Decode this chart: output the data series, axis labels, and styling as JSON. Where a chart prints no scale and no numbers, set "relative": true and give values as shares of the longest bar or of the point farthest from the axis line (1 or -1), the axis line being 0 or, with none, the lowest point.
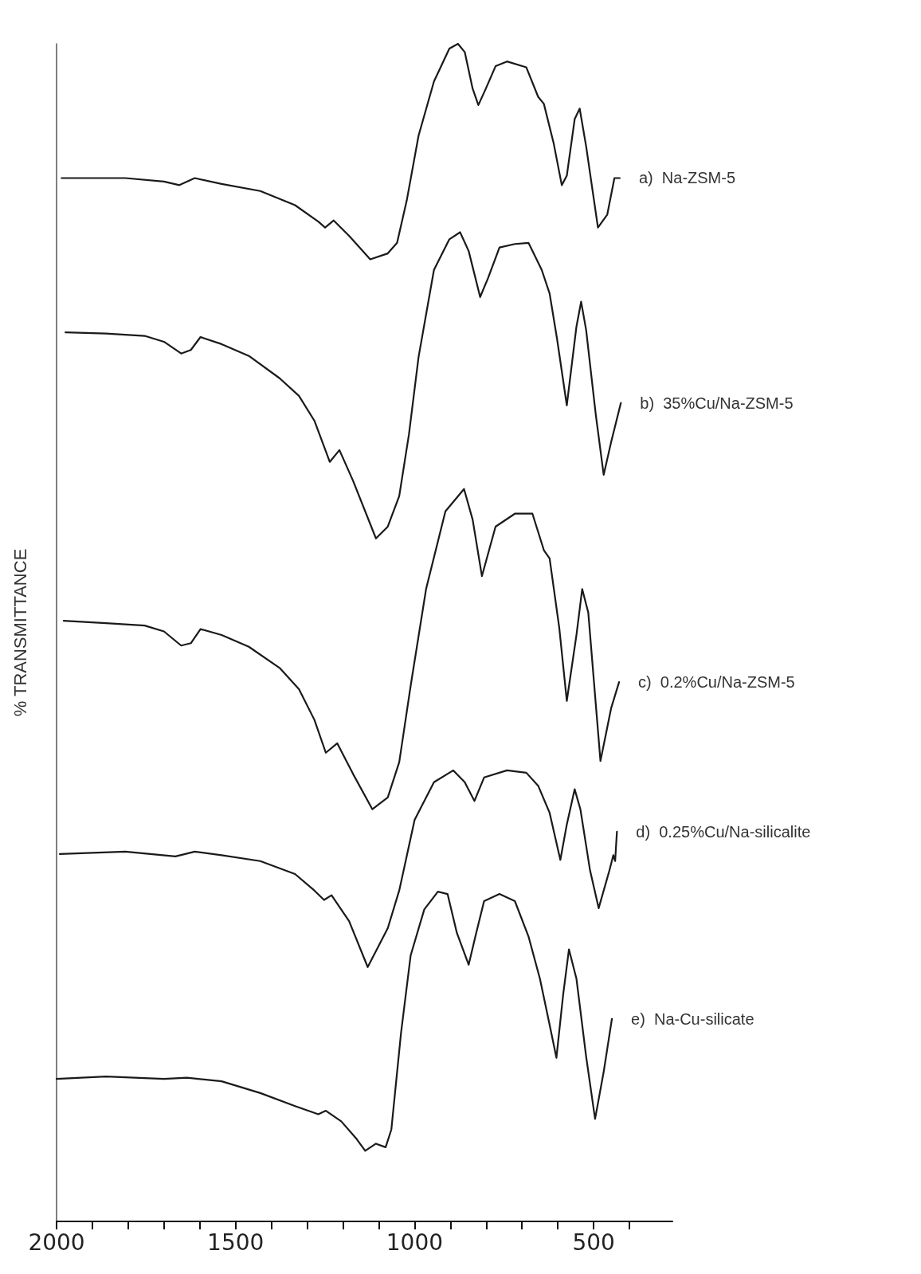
{
  "chart_data": {
    "type": "line",
    "relative": true,
    "ylabel": "% TRANSMITTANCE",
    "xlim": [
      2000,
      280
    ],
    "xticks": [
      2000,
      {
        "value": 1900,
        "label": null
      },
      {
        "value": 1800,
        "label": null
      },
      {
        "value": 1700,
        "label": null
      },
      {
        "value": 1600,
        "label": null
      },
      1500,
      {
        "value": 1400,
        "label": null
      },
      {
        "value": 1300,
        "label": null
      },
      {
        "value": 1200,
        "label": null
      },
      {
        "value": 1100,
        "label": null
      },
      1000,
      {
        "value": 900,
        "label": null
      },
      {
        "value": 800,
        "label": null
      },
      {
        "value": 700,
        "label": null
      },
      {
        "value": 600,
        "label": null
      },
      500,
      {
        "value": 400,
        "label": null
      }
    ],
    "grid": false,
    "legend": false,
    "marker": "none",
    "line_style": "solid",
    "series": [
      {
        "name": "a)  Na-ZSM-5",
        "color": "#1a1a1a",
        "x": [
          1986,
          1808,
          1700,
          1657,
          1614,
          1539,
          1431,
          1334,
          1269,
          1250,
          1226,
          1183,
          1124,
          1075,
          1049,
          1022,
          989,
          946,
          903,
          879,
          860,
          838,
          822,
          801,
          774,
          742,
          688,
          655,
          639,
          612,
          589,
          575,
          553,
          539,
          521,
          488,
          462,
          442,
          427
        ],
        "values": [
          0.886,
          0.886,
          0.883,
          0.88,
          0.886,
          0.881,
          0.875,
          0.863,
          0.849,
          0.844,
          0.85,
          0.837,
          0.817,
          0.822,
          0.831,
          0.867,
          0.922,
          0.968,
          0.996,
          1.0,
          0.993,
          0.962,
          0.948,
          0.962,
          0.981,
          0.985,
          0.98,
          0.955,
          0.949,
          0.916,
          0.88,
          0.888,
          0.936,
          0.945,
          0.913,
          0.844,
          0.855,
          0.886,
          0.886
        ]
      },
      {
        "name": "b)  35%Cu/Na-ZSM-5",
        "color": "#1a1a1a",
        "x": [
          1975,
          1862,
          1754,
          1700,
          1652,
          1625,
          1598,
          1539,
          1463,
          1377,
          1323,
          1280,
          1237,
          1210,
          1172,
          1108,
          1075,
          1043,
          1016,
          989,
          946,
          903,
          873,
          849,
          817,
          795,
          763,
          720,
          682,
          645,
          623,
          602,
          575,
          548,
          535,
          521,
          494,
          472,
          451,
          424
        ],
        "values": [
          0.755,
          0.754,
          0.752,
          0.747,
          0.737,
          0.74,
          0.751,
          0.745,
          0.735,
          0.716,
          0.701,
          0.68,
          0.645,
          0.655,
          0.629,
          0.58,
          0.59,
          0.616,
          0.668,
          0.734,
          0.808,
          0.834,
          0.84,
          0.824,
          0.785,
          0.801,
          0.827,
          0.83,
          0.831,
          0.808,
          0.788,
          0.749,
          0.693,
          0.76,
          0.781,
          0.757,
          0.685,
          0.634,
          0.662,
          0.695
        ]
      },
      {
        "name": "c)  0.2%Cu/Na-ZSM-5",
        "color": "#1a1a1a",
        "x": [
          1980,
          1862,
          1754,
          1700,
          1652,
          1625,
          1598,
          1539,
          1463,
          1377,
          1323,
          1280,
          1248,
          1216,
          1172,
          1118,
          1075,
          1043,
          1011,
          968,
          914,
          862,
          838,
          812,
          774,
          720,
          671,
          639,
          623,
          596,
          575,
          548,
          532,
          515,
          494,
          481,
          451,
          429
        ],
        "values": [
          0.51,
          0.508,
          0.506,
          0.501,
          0.489,
          0.491,
          0.503,
          0.498,
          0.488,
          0.47,
          0.452,
          0.426,
          0.398,
          0.406,
          0.38,
          0.35,
          0.36,
          0.39,
          0.455,
          0.537,
          0.603,
          0.622,
          0.596,
          0.548,
          0.59,
          0.601,
          0.601,
          0.57,
          0.563,
          0.504,
          0.442,
          0.498,
          0.537,
          0.517,
          0.439,
          0.391,
          0.436,
          0.458
        ]
      },
      {
        "name": "d)  0.25%Cu/Na-silicalite",
        "color": "#1a1a1a",
        "x": [
          1991,
          1808,
          1668,
          1614,
          1539,
          1431,
          1334,
          1280,
          1253,
          1232,
          1183,
          1131,
          1075,
          1043,
          1000,
          946,
          892,
          860,
          833,
          806,
          742,
          688,
          655,
          623,
          593,
          575,
          553,
          537,
          510,
          486,
          456,
          445,
          440,
          435
        ],
        "values": [
          0.312,
          0.314,
          0.31,
          0.314,
          0.311,
          0.306,
          0.295,
          0.281,
          0.273,
          0.277,
          0.255,
          0.216,
          0.249,
          0.281,
          0.341,
          0.373,
          0.383,
          0.373,
          0.357,
          0.377,
          0.383,
          0.381,
          0.37,
          0.347,
          0.307,
          0.337,
          0.367,
          0.35,
          0.298,
          0.266,
          0.298,
          0.311,
          0.306,
          0.331
        ]
      },
      {
        "name": "e)  Na-Cu-silicate",
        "color": "#1a1a1a",
        "x": [
          2000,
          1862,
          1700,
          1636,
          1539,
          1431,
          1334,
          1269,
          1248,
          1205,
          1162,
          1138,
          1108,
          1081,
          1065,
          1038,
          1011,
          973,
          935,
          908,
          882,
          849,
          828,
          806,
          763,
          720,
          682,
          650,
          623,
          604,
          585,
          569,
          548,
          521,
          496,
          472,
          449
        ],
        "values": [
          0.121,
          0.123,
          0.121,
          0.122,
          0.119,
          0.109,
          0.098,
          0.091,
          0.094,
          0.085,
          0.07,
          0.06,
          0.066,
          0.063,
          0.078,
          0.16,
          0.226,
          0.265,
          0.28,
          0.278,
          0.245,
          0.218,
          0.245,
          0.272,
          0.278,
          0.272,
          0.242,
          0.206,
          0.167,
          0.139,
          0.193,
          0.231,
          0.206,
          0.14,
          0.087,
          0.127,
          0.172
        ]
      }
    ]
  }
}
